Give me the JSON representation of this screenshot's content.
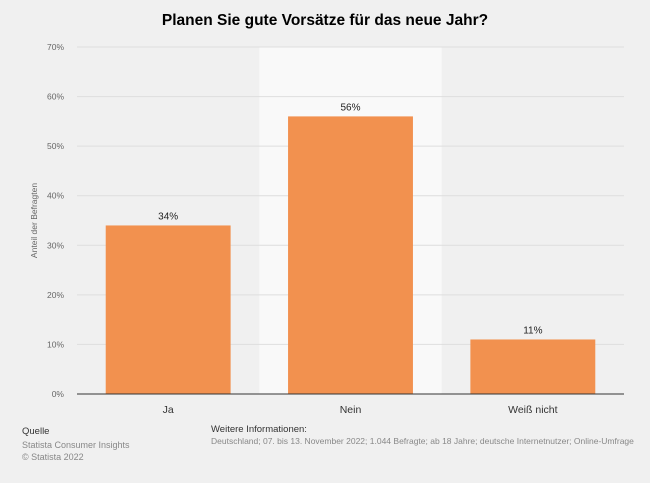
{
  "title": "Planen Sie gute Vorsätze für das neue Jahr?",
  "chart_data": {
    "type": "bar",
    "categories": [
      "Ja",
      "Nein",
      "Weiß nicht"
    ],
    "values": [
      34,
      56,
      11
    ],
    "value_labels": [
      "34%",
      "56%",
      "11%"
    ],
    "ylabel": "Anteil der Befragten",
    "ylim": [
      0,
      70
    ],
    "yticks": [
      0,
      10,
      20,
      30,
      40,
      50,
      60,
      70
    ],
    "ytick_labels": [
      "0%",
      "10%",
      "20%",
      "30%",
      "40%",
      "50%",
      "60%",
      "70%"
    ],
    "highlight_index": 1,
    "grid": true,
    "bar_color": "#f2914f"
  },
  "footer": {
    "source_heading": "Quelle",
    "source_line1": "Statista Consumer Insights",
    "source_line2": "© Statista 2022",
    "info_heading": "Weitere Informationen:",
    "info_text": "Deutschland; 07. bis 13. November 2022; 1.044 Befragte; ab 18 Jahre; deutsche Internetnutzer; Online-Umfrage"
  }
}
